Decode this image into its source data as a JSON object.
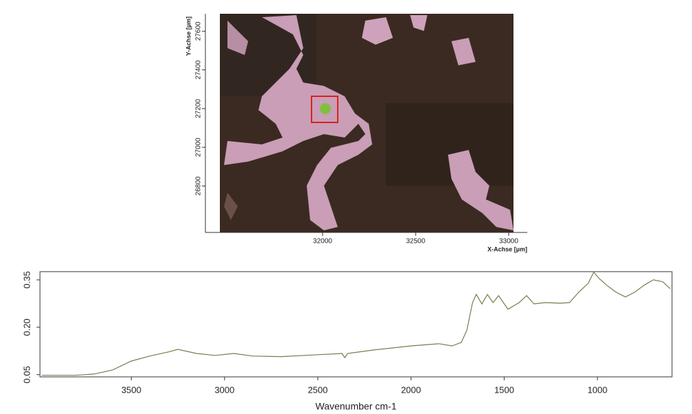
{
  "chart_data": [
    {
      "type": "image",
      "xlabel": "X-Achse [µm]",
      "ylabel": "Y-Achse [µm]",
      "xlim": [
        31370,
        33100
      ],
      "xticks": [
        32000,
        32500,
        33000
      ],
      "ylim": [
        26560,
        27690
      ],
      "yticks": [
        26800,
        27000,
        27200,
        27400,
        27600
      ]
    },
    {
      "type": "line",
      "xlabel": "Wavenumber cm-1",
      "color": "#7a7a4e",
      "x": [
        3980,
        3800,
        3700,
        3600,
        3500,
        3400,
        3300,
        3250,
        3150,
        3050,
        2950,
        2850,
        2700,
        2500,
        2370,
        2355,
        2340,
        2200,
        2000,
        1850,
        1780,
        1730,
        1700,
        1670,
        1650,
        1620,
        1590,
        1560,
        1530,
        1480,
        1420,
        1380,
        1340,
        1280,
        1200,
        1150,
        1100,
        1050,
        1020,
        990,
        950,
        900,
        850,
        800,
        750,
        700,
        650,
        610
      ],
      "values": [
        0.048,
        0.048,
        0.052,
        0.065,
        0.093,
        0.109,
        0.122,
        0.13,
        0.117,
        0.111,
        0.117,
        0.109,
        0.107,
        0.113,
        0.117,
        0.104,
        0.117,
        0.128,
        0.141,
        0.148,
        0.141,
        0.152,
        0.191,
        0.278,
        0.304,
        0.274,
        0.304,
        0.278,
        0.3,
        0.257,
        0.278,
        0.3,
        0.274,
        0.278,
        0.276,
        0.278,
        0.311,
        0.339,
        0.374,
        0.354,
        0.333,
        0.311,
        0.296,
        0.311,
        0.333,
        0.35,
        0.344,
        0.322
      ],
      "xlim": [
        3990,
        600
      ],
      "xticks": [
        3500,
        3000,
        2500,
        2000,
        1500,
        1000
      ],
      "ylim": [
        0.043,
        0.376
      ],
      "yticks": [
        0.05,
        {
          "value": 0.2,
          "label": "0.20"
        },
        0.35
      ]
    }
  ]
}
